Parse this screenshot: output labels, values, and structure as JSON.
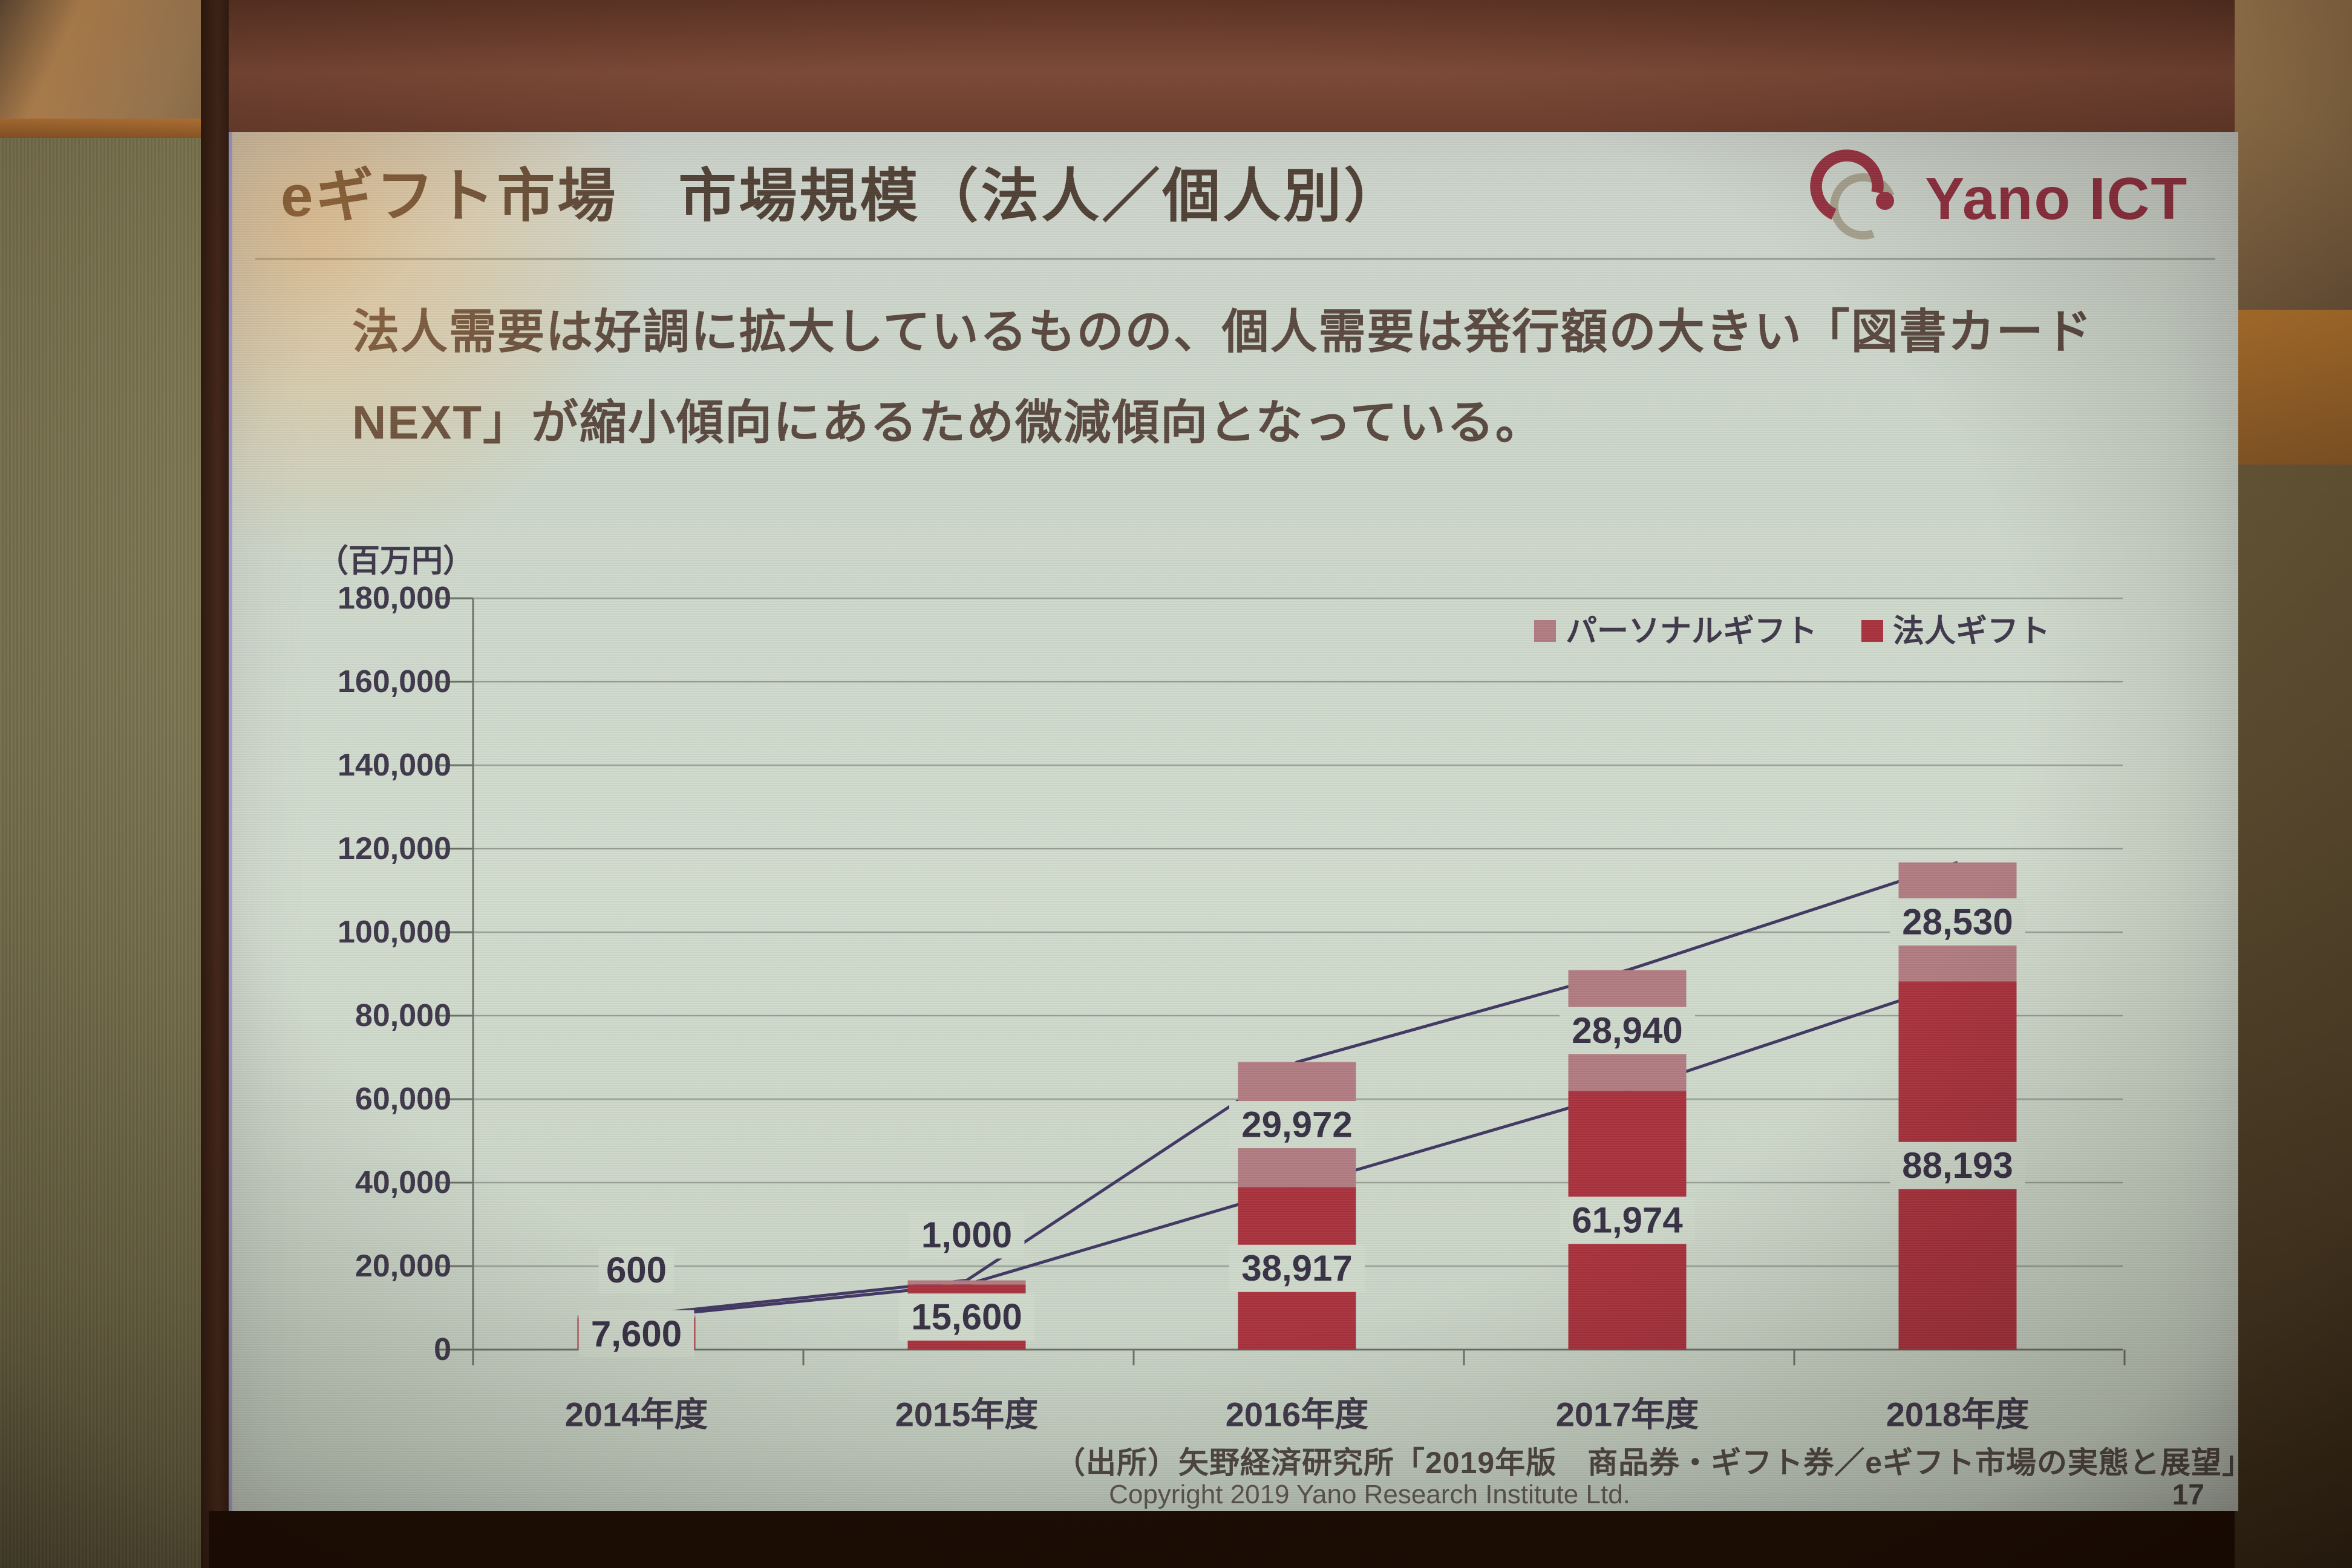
{
  "slide": {
    "title": "eギフト市場　市場規模（法人／個人別）",
    "logo_text": "Yano ICT",
    "body_lines": [
      "法人需要は好調に拡大しているものの、個人需要は発行額の大きい「図書カード",
      "NEXT」が縮小傾向にあるため微減傾向となっている。"
    ],
    "source": "（出所）矢野経済研究所「2019年版　商品券・ギフト券／eギフト市場の実態と展望」",
    "copyright": "Copyright 2019 Yano Research Institute Ltd.",
    "page_number": "17"
  },
  "chart_data": {
    "type": "bar",
    "stacked": true,
    "unit_label": "（百万円）",
    "categories": [
      "2014年度",
      "2015年度",
      "2016年度",
      "2017年度",
      "2018年度"
    ],
    "series": [
      {
        "name": "法人ギフト",
        "color": "#a82f3a",
        "values": [
          7600,
          15600,
          38917,
          61974,
          88193
        ]
      },
      {
        "name": "パーソナルギフト",
        "color": "#b07a80",
        "values": [
          600,
          1000,
          29972,
          28940,
          28530
        ]
      }
    ],
    "totals": [
      8200,
      16600,
      68889,
      90914,
      116723
    ],
    "legend": [
      "パーソナルギフト",
      "法人ギフト"
    ],
    "legend_position": "top-right",
    "ylim": [
      0,
      180000
    ],
    "ytick_step": 20000,
    "ytick_labels": [
      "0",
      "20,000",
      "40,000",
      "60,000",
      "80,000",
      "100,000",
      "120,000",
      "140,000",
      "160,000",
      "180,000"
    ],
    "grid": true,
    "series_lines": true,
    "style": {
      "grid_color": "#97a095",
      "axis_color": "#6a7065",
      "line_color": "#3e3560",
      "label_color": "#352e42",
      "axis_text_color": "#3c3548",
      "label_box_color": "#ced8ca"
    }
  },
  "colors": {
    "slide_background": "#ccd6c9",
    "logo_red": "#8e2c3c",
    "corporate_bar": "#a82f3a",
    "personal_bar": "#b07a80"
  }
}
